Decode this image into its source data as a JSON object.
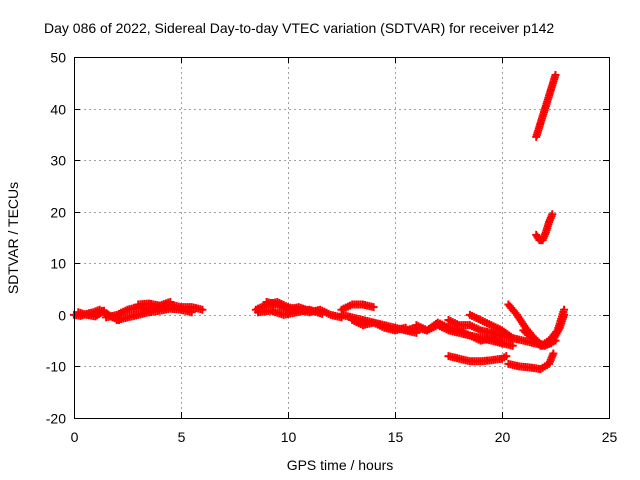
{
  "chart_data": {
    "type": "scatter",
    "title": "Day 086 of 2022, Sidereal Day-to-day VTEC variation (SDTVAR) for receiver p142",
    "xlabel": "GPS time / hours",
    "ylabel": "SDTVAR / TECUs",
    "xlim": [
      0,
      25
    ],
    "ylim": [
      -20,
      50
    ],
    "xticks": [
      0,
      5,
      10,
      15,
      20,
      25
    ],
    "yticks": [
      -20,
      -10,
      0,
      10,
      20,
      30,
      40,
      50
    ],
    "grid": true,
    "marker": "+",
    "color": "#ff0000",
    "segments": [
      {
        "x": [
          0.0,
          0.3,
          0.6,
          0.9,
          1.2,
          1.5,
          1.8,
          2.1
        ],
        "y": [
          0.0,
          -0.2,
          0.2,
          0.5,
          1.0,
          0.3,
          -0.5,
          -1.0
        ]
      },
      {
        "x": [
          0.2,
          0.6,
          1.0,
          1.4
        ],
        "y": [
          0.5,
          0.0,
          -0.3,
          0.8
        ]
      },
      {
        "x": [
          1.5,
          2.0,
          2.5,
          3.0,
          3.5,
          4.0,
          4.5,
          5.0,
          5.5,
          6.0
        ],
        "y": [
          -0.5,
          0.0,
          1.0,
          1.5,
          1.0,
          1.5,
          2.0,
          1.5,
          1.5,
          1.0
        ]
      },
      {
        "x": [
          2.0,
          2.5,
          3.0,
          3.5,
          4.0,
          4.5,
          5.0,
          5.5
        ],
        "y": [
          -1.0,
          -0.5,
          0.0,
          0.5,
          0.8,
          1.2,
          1.0,
          0.5
        ]
      },
      {
        "x": [
          3.0,
          3.5,
          4.0,
          4.5
        ],
        "y": [
          2.0,
          2.2,
          1.8,
          2.5
        ]
      },
      {
        "x": [
          8.5,
          9.0,
          9.5,
          10.0,
          10.5,
          11.0,
          11.5,
          12.0,
          12.5
        ],
        "y": [
          1.0,
          2.0,
          2.5,
          1.5,
          1.0,
          0.5,
          1.0,
          0.0,
          -0.5
        ]
      },
      {
        "x": [
          8.6,
          9.2,
          9.8,
          10.4,
          11.0,
          11.6
        ],
        "y": [
          0.5,
          0.8,
          0.0,
          0.5,
          1.0,
          0.2
        ]
      },
      {
        "x": [
          9.0,
          9.5,
          10.0,
          10.5,
          11.0
        ],
        "y": [
          2.5,
          2.0,
          1.0,
          1.5,
          0.8
        ]
      },
      {
        "x": [
          12.5,
          13.0,
          13.5,
          14.0
        ],
        "y": [
          1.0,
          2.0,
          2.0,
          1.5
        ]
      },
      {
        "x": [
          12.5,
          13.0,
          13.5,
          14.0,
          14.5,
          15.0,
          15.5,
          16.0
        ],
        "y": [
          0.0,
          -0.5,
          -1.0,
          -1.5,
          -2.0,
          -2.5,
          -3.0,
          -3.5
        ]
      },
      {
        "x": [
          13.0,
          13.5,
          14.0,
          14.5,
          15.0,
          15.5
        ],
        "y": [
          -1.0,
          -2.0,
          -1.5,
          -2.5,
          -3.0,
          -2.5
        ]
      },
      {
        "x": [
          15.5,
          16.0,
          16.5,
          17.0,
          17.5,
          18.0,
          18.5,
          19.0,
          19.5,
          20.0,
          20.5
        ],
        "y": [
          -3.0,
          -2.5,
          -3.0,
          -2.0,
          -3.0,
          -3.5,
          -4.0,
          -4.5,
          -5.0,
          -5.5,
          -6.0
        ]
      },
      {
        "x": [
          16.0,
          16.5,
          17.0,
          17.5,
          18.0,
          18.5,
          19.0,
          19.5,
          20.0
        ],
        "y": [
          -2.0,
          -3.0,
          -1.5,
          -2.5,
          -3.0,
          -4.0,
          -5.0,
          -4.5,
          -5.5
        ]
      },
      {
        "x": [
          17.5,
          18.0,
          18.5,
          19.0,
          19.5,
          20.0
        ],
        "y": [
          -1.0,
          -2.0,
          -2.0,
          -3.0,
          -3.5,
          -4.0
        ]
      },
      {
        "x": [
          18.5,
          19.0,
          19.5,
          20.0,
          20.5
        ],
        "y": [
          0.0,
          -1.0,
          -2.0,
          -3.0,
          -4.5
        ]
      },
      {
        "x": [
          17.5,
          18.0,
          18.5,
          19.0,
          19.5,
          20.0,
          20.2
        ],
        "y": [
          -8.0,
          -8.5,
          -9.0,
          -9.0,
          -8.8,
          -8.5,
          -8.0
        ]
      },
      {
        "x": [
          19.5,
          20.0,
          20.5,
          21.0,
          21.5,
          22.0,
          22.5
        ],
        "y": [
          -3.5,
          -4.0,
          -4.5,
          -5.0,
          -5.5,
          -6.0,
          -5.0
        ]
      },
      {
        "x": [
          20.3,
          20.7,
          21.1,
          21.5,
          21.9,
          22.3,
          22.7,
          22.9
        ],
        "y": [
          2.0,
          0.0,
          -2.5,
          -4.5,
          -6.0,
          -5.5,
          -2.5,
          0.0
        ]
      },
      {
        "x": [
          21.0,
          21.4,
          21.8,
          22.2,
          22.6,
          22.9
        ],
        "y": [
          -3.0,
          -4.5,
          -6.0,
          -5.0,
          -3.0,
          1.0
        ]
      },
      {
        "x": [
          20.3,
          20.8,
          21.3,
          21.8,
          22.2,
          22.4
        ],
        "y": [
          -9.5,
          -10.0,
          -10.2,
          -10.5,
          -9.5,
          -7.5
        ]
      },
      {
        "x": [
          21.6,
          21.75,
          21.9,
          22.05,
          22.2,
          22.35
        ],
        "y": [
          15.5,
          14.5,
          14.5,
          16.0,
          18.0,
          19.5
        ]
      },
      {
        "x": [
          21.6,
          21.75,
          21.9,
          22.05,
          22.2,
          22.35,
          22.5
        ],
        "y": [
          34.5,
          36.5,
          38.5,
          40.5,
          42.5,
          44.5,
          46.5
        ]
      }
    ]
  }
}
